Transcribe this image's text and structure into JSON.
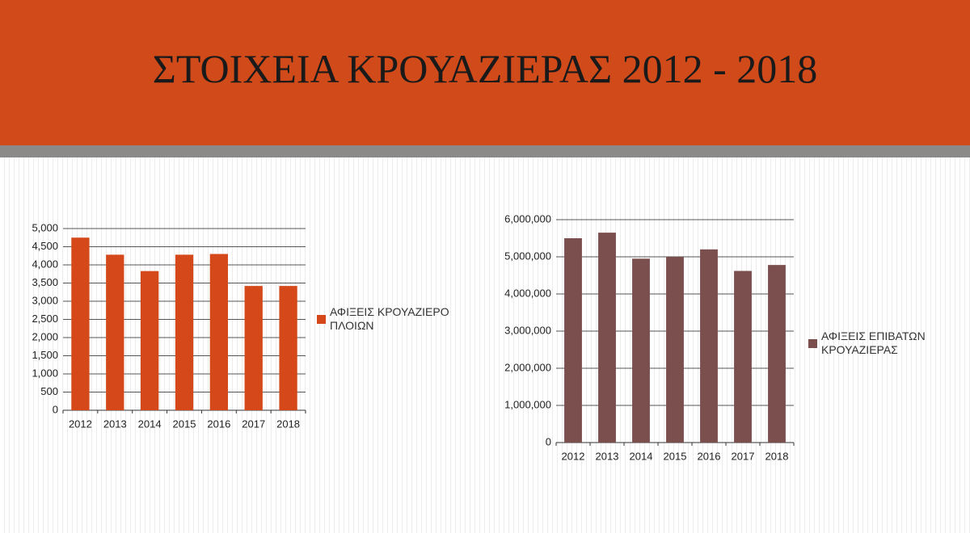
{
  "title": "ΣΤΟΙΧΕΙΑ ΚΡΟΥΑΖΙΕΡΑΣ 2012 - 2018",
  "chart_data": [
    {
      "type": "bar",
      "categories": [
        "2012",
        "2013",
        "2014",
        "2015",
        "2016",
        "2017",
        "2018"
      ],
      "series": [
        {
          "name": "ΑΦΙΞΕΙΣ ΚΡΟΥΑΖΙΕΡΟΠΛΟΙΩΝ",
          "color": "#d4481a",
          "values": [
            4750,
            4280,
            3830,
            4280,
            4300,
            3420,
            3420
          ]
        }
      ],
      "ylim": [
        0,
        5000
      ],
      "yticks": [
        0,
        500,
        {
          "value": 1000,
          "label": "1,000"
        },
        {
          "value": 1500,
          "label": "1,500"
        },
        {
          "value": 2000,
          "label": "2,000"
        },
        {
          "value": 2500,
          "label": "2,500"
        },
        {
          "value": 3000,
          "label": "3,000"
        },
        {
          "value": 3500,
          "label": "3,500"
        },
        {
          "value": 4000,
          "label": "4,000"
        },
        {
          "value": 4500,
          "label": "4,500"
        },
        {
          "value": 5000,
          "label": "5,000"
        }
      ],
      "grid": true,
      "legend": "right"
    },
    {
      "type": "bar",
      "categories": [
        "2012",
        "2013",
        "2014",
        "2015",
        "2016",
        "2017",
        "2018"
      ],
      "series": [
        {
          "name": "ΑΦΙΞΕΙΣ ΕΠΙΒΑΤΩΝ ΚΡΟΥΑΖΙΕΡΑΣ",
          "color": "#7a4f4e",
          "values": [
            5500000,
            5650000,
            4950000,
            5000000,
            5200000,
            4620000,
            4780000
          ]
        }
      ],
      "ylim": [
        0,
        6000000
      ],
      "yticks": [
        0,
        {
          "value": 1000000,
          "label": "1,000,000"
        },
        {
          "value": 2000000,
          "label": "2,000,000"
        },
        {
          "value": 3000000,
          "label": "3,000,000"
        },
        {
          "value": 4000000,
          "label": "4,000,000"
        },
        {
          "value": 5000000,
          "label": "5,000,000"
        },
        {
          "value": 6000000,
          "label": "6,000,000"
        }
      ],
      "grid": true,
      "legend": "right"
    }
  ]
}
